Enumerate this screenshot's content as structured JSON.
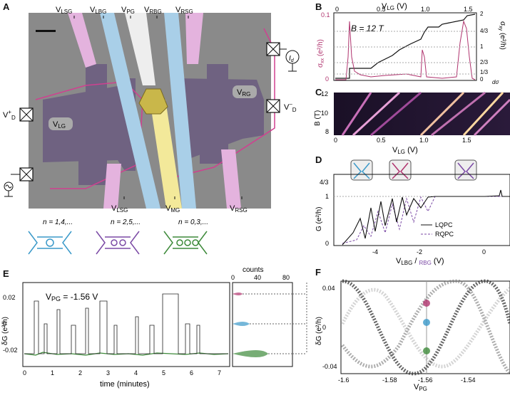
{
  "panels": {
    "A": {
      "label": "A",
      "top_labels": [
        "V",
        "V",
        "V",
        "V",
        "V"
      ],
      "top_subs": [
        "LSG",
        "LBG",
        "PG",
        "RBG",
        "RSG"
      ],
      "bottom_labels": [
        "V",
        "V",
        "V"
      ],
      "bottom_subs": [
        "LSG",
        "MG",
        "RSG"
      ],
      "region_lg": "V",
      "region_lg_sub": "LG",
      "region_rg": "V",
      "region_rg_sub": "RG",
      "vd_plus": "V",
      "vd_plus_sup": "+",
      "vd_plus_sub": "D",
      "vd_minus": "V",
      "vd_minus_sup": "–",
      "vd_minus_sub": "D",
      "current": "I",
      "current_sub": "d"
    },
    "B": {
      "label": "B",
      "field": "B = 12 T",
      "xaxis_label": "V",
      "xaxis_sub": "LG",
      "xaxis_unit": " (V)",
      "x_ticks": [
        "0",
        "0.5",
        "1.0",
        "1.5"
      ],
      "left_axis": "σ",
      "left_sub": "xx",
      "left_unit": " (e²/h)",
      "left_ticks": [
        "0.1",
        "0"
      ],
      "right_axis": "σ",
      "right_sub": "xy",
      "right_unit": " (e²/h)",
      "right_ticks": [
        "2",
        "4/3",
        "1",
        "2/3",
        "1/3",
        "0"
      ],
      "corner": "dσ"
    },
    "C": {
      "label": "C",
      "ylabel": "B (T)",
      "y_ticks": [
        "12",
        "10",
        "8"
      ],
      "x_ticks": [
        "0",
        "0.5",
        "1.0",
        "1.5"
      ],
      "xaxis": "V",
      "xaxis_sub": "LG",
      "xaxis_unit": " (V)"
    },
    "D": {
      "label": "D",
      "ylabel": "G (e²/h)",
      "y_ticks": [
        "4/3",
        "1",
        "0"
      ],
      "x_ticks": [
        "-4",
        "-2",
        "0"
      ],
      "xaxis_prefix": "V",
      "xaxis_lbg": "LBG",
      "xaxis_slash": " / ",
      "xaxis_rbg": "RBG",
      "xaxis_unit": " (V)",
      "legend": [
        "LQPC",
        "RQPC"
      ]
    },
    "E": {
      "label": "E",
      "insets": [
        "n = 1,4,...",
        "n = 2,5,...",
        "n = 0,3,..."
      ],
      "vpg": "V",
      "vpg_sub": "PG",
      "vpg_value": " = -1.56 V",
      "ylabel": "δG (e²/h)",
      "y_ticks": [
        "0.02",
        "0",
        "-0.02"
      ],
      "x_ticks": [
        "0",
        "1",
        "2",
        "3",
        "4",
        "5",
        "6",
        "7"
      ],
      "xlabel": "time (minutes)",
      "counts_title": "counts",
      "counts_ticks": [
        "0",
        "40",
        "80"
      ]
    },
    "F": {
      "label": "F",
      "ylabel": "δG (e²/h)",
      "y_ticks": [
        "0.04",
        "0",
        "-0.04"
      ],
      "x_ticks": [
        "-1.6",
        "-1.58",
        "-1.56",
        "-1.54"
      ],
      "xlabel": "V",
      "xlabel_sub": "PG"
    }
  },
  "colors": {
    "magenta": "#b0336e",
    "purple": "#7b4aa5",
    "blue": "#3a99c9",
    "green": "#3d8a3a",
    "gate_blue": "#a9cfe8",
    "gate_pink": "#e4b3de",
    "gate_yellow": "#f3e99a",
    "dark_purple": "#6b5b85"
  }
}
